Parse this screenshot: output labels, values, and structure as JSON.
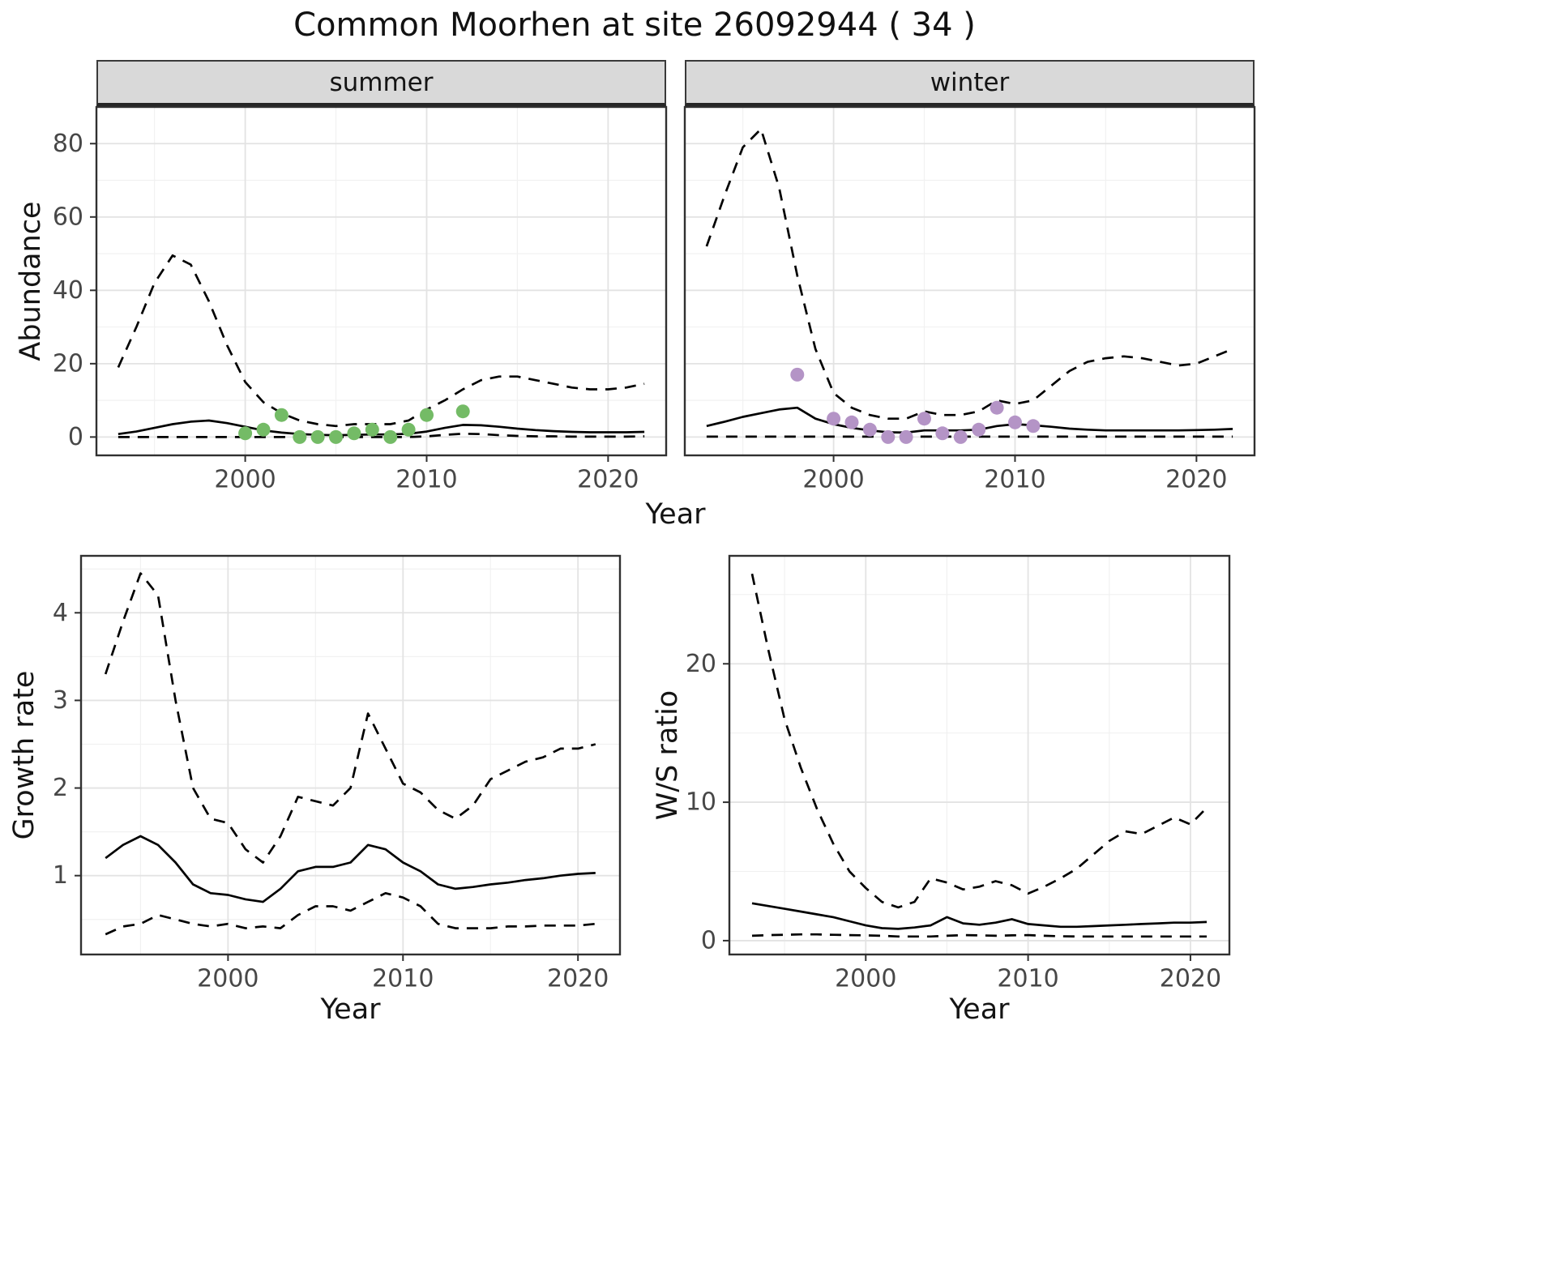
{
  "title": "Common Moorhen at site 26092944 ( 34 )",
  "facets": {
    "summer": "summer",
    "winter": "winter"
  },
  "axis_labels": {
    "abundance": "Abundance",
    "year": "Year",
    "growth_rate": "Growth rate",
    "ws_ratio": "W/S ratio"
  },
  "colors": {
    "summer_points": "#74bb66",
    "winter_points": "#b494c6",
    "line": "#000000",
    "grid_major": "#e3e3e3",
    "grid_minor": "#f1f1f1",
    "strip_bg": "#d9d9d9",
    "panel_border": "#303030",
    "tick_text": "#474747"
  },
  "chart_data": [
    {
      "id": "abundance-summer",
      "type": "line",
      "facet_label": "summer",
      "xlabel": "Year",
      "ylabel": "Abundance",
      "x": [
        1993,
        1994,
        1995,
        1996,
        1997,
        1998,
        1999,
        2000,
        2001,
        2002,
        2003,
        2004,
        2005,
        2006,
        2007,
        2008,
        2009,
        2010,
        2011,
        2012,
        2013,
        2014,
        2015,
        2016,
        2017,
        2018,
        2019,
        2020,
        2021,
        2022
      ],
      "xlim": [
        1991.8,
        2023.2
      ],
      "ylim": [
        -5,
        90
      ],
      "xticks": [
        2000,
        2010,
        2020
      ],
      "yticks": [
        0,
        20,
        40,
        60,
        80
      ],
      "grid": true,
      "series": [
        {
          "name": "upper-ci",
          "style": "dashed",
          "values": [
            19,
            30,
            42,
            49.5,
            47,
            37,
            25,
            15,
            9.5,
            6.5,
            4.5,
            3.5,
            3,
            3.5,
            3.5,
            3.5,
            4.5,
            7.5,
            10,
            13,
            15.5,
            16.5,
            16.5,
            15.5,
            14.5,
            13.5,
            13,
            13,
            13.5,
            14.5
          ]
        },
        {
          "name": "mean",
          "style": "solid",
          "values": [
            0.8,
            1.5,
            2.5,
            3.5,
            4.2,
            4.5,
            3.8,
            2.8,
            1.8,
            1.2,
            0.8,
            0.6,
            0.5,
            0.6,
            0.7,
            0.7,
            0.9,
            1.5,
            2.5,
            3.3,
            3.2,
            2.8,
            2.3,
            1.9,
            1.6,
            1.4,
            1.3,
            1.3,
            1.3,
            1.4
          ]
        },
        {
          "name": "lower-ci",
          "style": "dashed",
          "values": [
            0,
            0,
            0,
            0,
            0,
            0,
            0,
            0,
            0,
            0,
            0,
            0,
            0,
            0,
            0,
            0,
            0,
            0.2,
            0.6,
            0.9,
            0.8,
            0.5,
            0.3,
            0.2,
            0.2,
            0.1,
            0.1,
            0.1,
            0.1,
            0.2
          ]
        }
      ],
      "points": {
        "name": "observed-counts-summer",
        "color": "#74bb66",
        "x": [
          2000,
          2001,
          2002,
          2003,
          2004,
          2005,
          2006,
          2007,
          2008,
          2009,
          2010,
          2012
        ],
        "y": [
          1,
          2,
          6,
          0,
          0,
          0,
          1,
          2,
          0,
          2,
          6,
          7
        ]
      }
    },
    {
      "id": "abundance-winter",
      "type": "line",
      "facet_label": "winter",
      "xlabel": "Year",
      "ylabel": "Abundance",
      "x": [
        1993,
        1994,
        1995,
        1996,
        1997,
        1998,
        1999,
        2000,
        2001,
        2002,
        2003,
        2004,
        2005,
        2006,
        2007,
        2008,
        2009,
        2010,
        2011,
        2012,
        2013,
        2014,
        2015,
        2016,
        2017,
        2018,
        2019,
        2020,
        2021,
        2022
      ],
      "xlim": [
        1991.8,
        2023.2
      ],
      "ylim": [
        -5,
        90
      ],
      "xticks": [
        2000,
        2010,
        2020
      ],
      "yticks": [
        0,
        20,
        40,
        60,
        80
      ],
      "grid": true,
      "series": [
        {
          "name": "upper-ci",
          "style": "dashed",
          "values": [
            52,
            66,
            79,
            84,
            68,
            44,
            24,
            12,
            8,
            6,
            5,
            5,
            7,
            6,
            6,
            7,
            10,
            9,
            10,
            14,
            18,
            20.5,
            21.5,
            22,
            21.5,
            20.5,
            19.5,
            20,
            22,
            24
          ]
        },
        {
          "name": "mean",
          "style": "solid",
          "values": [
            3,
            4.2,
            5.5,
            6.5,
            7.5,
            8,
            5,
            3.5,
            2.5,
            1.8,
            1.3,
            1.2,
            1.8,
            1.8,
            1.8,
            2,
            3,
            3.5,
            3.2,
            2.8,
            2.3,
            2,
            1.8,
            1.8,
            1.8,
            1.8,
            1.8,
            1.9,
            2,
            2.2
          ]
        },
        {
          "name": "lower-ci",
          "style": "dashed",
          "values": [
            0.1,
            0.1,
            0.1,
            0.1,
            0.1,
            0.1,
            0.1,
            0.1,
            0.1,
            0.1,
            0.1,
            0.1,
            0.1,
            0.1,
            0.1,
            0.1,
            0.1,
            0.1,
            0.1,
            0.1,
            0.1,
            0.1,
            0.1,
            0.1,
            0.1,
            0.1,
            0.1,
            0.1,
            0.1,
            0.1
          ]
        }
      ],
      "points": {
        "name": "observed-counts-winter",
        "color": "#b494c6",
        "x": [
          1998,
          2000,
          2001,
          2002,
          2003,
          2004,
          2005,
          2006,
          2007,
          2008,
          2009,
          2010,
          2011
        ],
        "y": [
          17,
          5,
          4,
          2,
          0,
          0,
          5,
          1,
          0,
          2,
          8,
          4,
          3
        ]
      }
    },
    {
      "id": "growth-rate",
      "type": "line",
      "xlabel": "Year",
      "ylabel": "Growth rate",
      "x": [
        1993,
        1994,
        1995,
        1996,
        1997,
        1998,
        1999,
        2000,
        2001,
        2002,
        2003,
        2004,
        2005,
        2006,
        2007,
        2008,
        2009,
        2010,
        2011,
        2012,
        2013,
        2014,
        2015,
        2016,
        2017,
        2018,
        2019,
        2020,
        2021
      ],
      "xlim": [
        1991.6,
        2022.4
      ],
      "ylim": [
        0.1,
        4.65
      ],
      "xticks": [
        2000,
        2010,
        2020
      ],
      "yticks": [
        1,
        2,
        3,
        4
      ],
      "grid": true,
      "series": [
        {
          "name": "upper-ci",
          "style": "dashed",
          "values": [
            3.3,
            3.9,
            4.45,
            4.2,
            3.0,
            2.0,
            1.65,
            1.6,
            1.3,
            1.15,
            1.45,
            1.9,
            1.85,
            1.8,
            2.0,
            2.85,
            2.45,
            2.05,
            1.95,
            1.75,
            1.65,
            1.8,
            2.1,
            2.2,
            2.3,
            2.35,
            2.45,
            2.45,
            2.5
          ]
        },
        {
          "name": "mean",
          "style": "solid",
          "values": [
            1.2,
            1.35,
            1.45,
            1.35,
            1.15,
            0.9,
            0.8,
            0.78,
            0.73,
            0.7,
            0.85,
            1.05,
            1.1,
            1.1,
            1.15,
            1.35,
            1.3,
            1.15,
            1.05,
            0.9,
            0.85,
            0.87,
            0.9,
            0.92,
            0.95,
            0.97,
            1.0,
            1.02,
            1.03
          ]
        },
        {
          "name": "lower-ci",
          "style": "dashed",
          "values": [
            0.33,
            0.42,
            0.45,
            0.55,
            0.5,
            0.45,
            0.42,
            0.45,
            0.4,
            0.42,
            0.4,
            0.55,
            0.65,
            0.65,
            0.6,
            0.7,
            0.8,
            0.75,
            0.65,
            0.45,
            0.4,
            0.4,
            0.4,
            0.42,
            0.42,
            0.43,
            0.43,
            0.43,
            0.45
          ]
        }
      ]
    },
    {
      "id": "ws-ratio",
      "type": "line",
      "xlabel": "Year",
      "ylabel": "W/S ratio",
      "x": [
        1993,
        1994,
        1995,
        1996,
        1997,
        1998,
        1999,
        2000,
        2001,
        2002,
        2003,
        2004,
        2005,
        2006,
        2007,
        2008,
        2009,
        2010,
        2011,
        2012,
        2013,
        2014,
        2015,
        2016,
        2017,
        2018,
        2019,
        2020,
        2021
      ],
      "xlim": [
        1991.6,
        2022.4
      ],
      "ylim": [
        -1,
        27.8
      ],
      "xticks": [
        2000,
        2010,
        2020
      ],
      "yticks": [
        0,
        10,
        20
      ],
      "grid": true,
      "series": [
        {
          "name": "upper-ci",
          "style": "dashed",
          "values": [
            26.5,
            21,
            16,
            12.5,
            9.5,
            7,
            5,
            3.8,
            2.8,
            2.4,
            2.8,
            4.5,
            4.2,
            3.7,
            3.9,
            4.3,
            4.0,
            3.4,
            3.9,
            4.5,
            5.2,
            6.2,
            7.2,
            7.9,
            7.7,
            8.3,
            8.9,
            8.4,
            9.6
          ]
        },
        {
          "name": "mean",
          "style": "solid",
          "values": [
            2.7,
            2.5,
            2.3,
            2.1,
            1.9,
            1.7,
            1.4,
            1.1,
            0.9,
            0.85,
            0.95,
            1.1,
            1.7,
            1.25,
            1.15,
            1.3,
            1.55,
            1.2,
            1.1,
            1.0,
            1.0,
            1.05,
            1.1,
            1.15,
            1.2,
            1.25,
            1.3,
            1.3,
            1.35
          ]
        },
        {
          "name": "lower-ci",
          "style": "dashed",
          "values": [
            0.35,
            0.4,
            0.42,
            0.45,
            0.45,
            0.42,
            0.4,
            0.38,
            0.35,
            0.3,
            0.3,
            0.3,
            0.35,
            0.4,
            0.38,
            0.35,
            0.38,
            0.4,
            0.35,
            0.32,
            0.3,
            0.3,
            0.3,
            0.3,
            0.3,
            0.3,
            0.3,
            0.3,
            0.3
          ]
        }
      ]
    }
  ]
}
